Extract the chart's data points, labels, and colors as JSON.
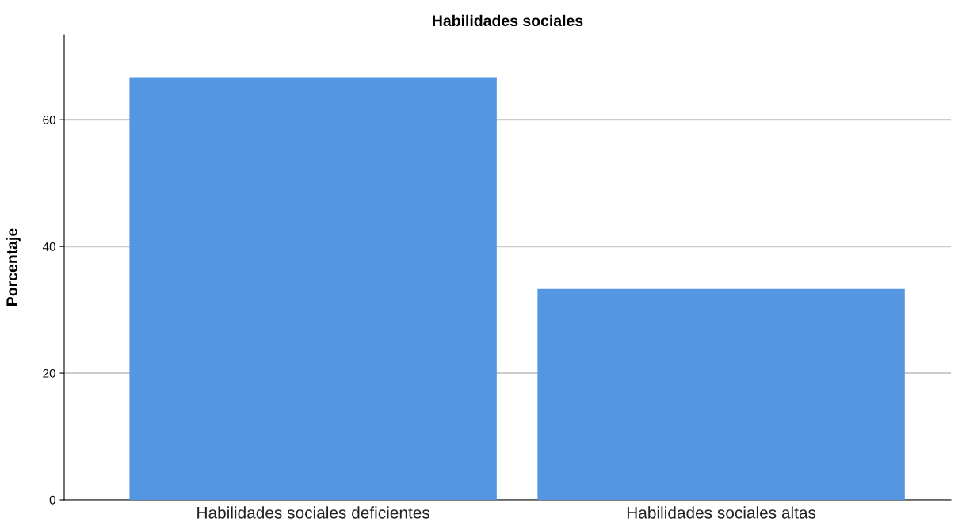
{
  "chart_data": {
    "type": "bar",
    "title": "Habilidades sociales",
    "ylabel": "Porcentaje",
    "categories": [
      "Habilidades sociales deficientes",
      "Habilidades sociales altas"
    ],
    "values": [
      66.7,
      33.3
    ],
    "color": "#5596e3",
    "ylim": [
      0,
      73.4
    ],
    "yticks": [
      0,
      20,
      40,
      60
    ],
    "grid": "y",
    "legend": false
  }
}
